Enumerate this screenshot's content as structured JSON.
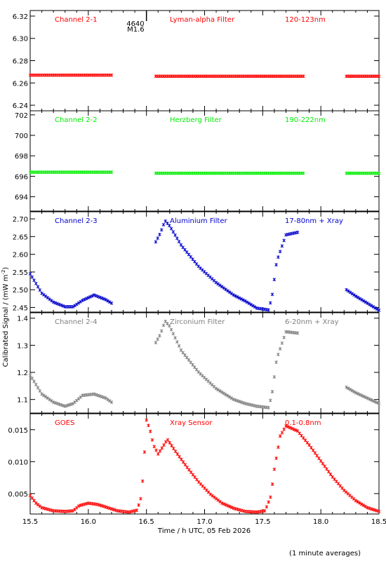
{
  "figure": {
    "xlabel": "Time / h UTC, 05 Feb 2026",
    "ylabel": "Calibrated Signal / (mW m",
    "ylabel_exp": "-2",
    "ylabel_close": ")",
    "footnote": "(1 minute averages)",
    "x_ticks": [
      "15.5",
      "16.0",
      "16.5",
      "17.0",
      "17.5",
      "18.0",
      "18.5"
    ],
    "flare_marker": {
      "line1": "4640",
      "line2": "M1.6",
      "x": 16.5
    }
  },
  "colors": {
    "red": "#ff0000",
    "green": "#00ee00",
    "blue": "#0000cc",
    "gray": "#808080"
  },
  "chart_data": [
    {
      "type": "scatter",
      "channel": "Channel 2-1",
      "filter": "Lyman-alpha Filter",
      "band": "120-123nm",
      "color": "#ff0000",
      "xlim": [
        15.5,
        18.5
      ],
      "ylim": [
        6.235,
        6.325
      ],
      "yticks": [
        6.24,
        6.26,
        6.28,
        6.3,
        6.32
      ],
      "ytick_labels": [
        "6.24",
        "6.26",
        "6.28",
        "6.30",
        "6.32"
      ],
      "series": [
        {
          "x": [
            15.5,
            16.2
          ],
          "y": [
            6.267,
            6.267
          ]
        },
        {
          "x": [
            16.58,
            17.85
          ],
          "y": [
            6.266,
            6.266
          ]
        },
        {
          "x": [
            18.22,
            18.5
          ],
          "y": [
            6.266,
            6.266
          ]
        }
      ]
    },
    {
      "type": "scatter",
      "channel": "Channel 2-2",
      "filter": "Herzberg Filter",
      "band": "190-222nm",
      "color": "#00ee00",
      "xlim": [
        15.5,
        18.5
      ],
      "ylim": [
        692.6,
        702.4
      ],
      "yticks": [
        694,
        696,
        698,
        700,
        702
      ],
      "ytick_labels": [
        "694",
        "696",
        "698",
        "700",
        "702"
      ],
      "series": [
        {
          "x": [
            15.5,
            16.2
          ],
          "y": [
            696.4,
            696.4
          ]
        },
        {
          "x": [
            16.58,
            17.85
          ],
          "y": [
            696.3,
            696.3
          ]
        },
        {
          "x": [
            18.22,
            18.5
          ],
          "y": [
            696.3,
            696.3
          ]
        }
      ]
    },
    {
      "type": "scatter",
      "channel": "Channel 2-3",
      "filter": "Aluminium Filter",
      "band": "17-80nm + Xray",
      "color": "#0000cc",
      "xlim": [
        15.5,
        18.5
      ],
      "ylim": [
        2.437,
        2.72
      ],
      "yticks": [
        2.45,
        2.5,
        2.55,
        2.6,
        2.65,
        2.7
      ],
      "ytick_labels": [
        "2.45",
        "2.50",
        "2.55",
        "2.60",
        "2.65",
        "2.70"
      ],
      "series": [
        {
          "x": [
            15.5,
            15.6,
            15.7,
            15.8,
            15.87,
            15.95,
            16.05,
            16.15,
            16.2
          ],
          "y": [
            2.545,
            2.49,
            2.465,
            2.452,
            2.452,
            2.47,
            2.485,
            2.472,
            2.462
          ]
        },
        {
          "x": [
            16.58,
            16.62,
            16.66,
            16.7,
            16.8,
            16.95,
            17.1,
            17.25,
            17.35,
            17.45,
            17.55,
            17.58,
            17.62,
            17.7,
            17.8
          ],
          "y": [
            2.635,
            2.66,
            2.695,
            2.68,
            2.625,
            2.565,
            2.52,
            2.485,
            2.468,
            2.448,
            2.443,
            2.48,
            2.58,
            2.655,
            2.662
          ]
        },
        {
          "x": [
            18.22,
            18.3,
            18.4,
            18.5
          ],
          "y": [
            2.5,
            2.482,
            2.462,
            2.442
          ]
        }
      ]
    },
    {
      "type": "scatter",
      "channel": "Channel 2-4",
      "filter": "Zirconium Filter",
      "band": "6-20nm + Xray",
      "color": "#808080",
      "xlim": [
        15.5,
        18.5
      ],
      "ylim": [
        1.05,
        1.42
      ],
      "yticks": [
        1.1,
        1.2,
        1.3,
        1.4
      ],
      "ytick_labels": [
        "1.1",
        "1.2",
        "1.3",
        "1.4"
      ],
      "series": [
        {
          "x": [
            15.5,
            15.6,
            15.7,
            15.8,
            15.87,
            15.95,
            16.05,
            16.15,
            16.2
          ],
          "y": [
            1.19,
            1.12,
            1.09,
            1.075,
            1.085,
            1.115,
            1.12,
            1.105,
            1.09
          ]
        },
        {
          "x": [
            16.58,
            16.62,
            16.66,
            16.7,
            16.8,
            16.95,
            17.1,
            17.25,
            17.35,
            17.45,
            17.55,
            17.58,
            17.62,
            17.7,
            17.8
          ],
          "y": [
            1.31,
            1.34,
            1.39,
            1.37,
            1.28,
            1.2,
            1.14,
            1.1,
            1.085,
            1.075,
            1.07,
            1.12,
            1.25,
            1.35,
            1.345
          ]
        },
        {
          "x": [
            18.22,
            18.3,
            18.4,
            18.5
          ],
          "y": [
            1.145,
            1.125,
            1.105,
            1.085
          ]
        }
      ]
    },
    {
      "type": "scatter",
      "channel": "GOES",
      "filter": "Xray Sensor",
      "band": "0.1-0.8nm",
      "color": "#ff0000",
      "xlim": [
        15.5,
        18.5
      ],
      "ylim": [
        0.0018,
        0.0175
      ],
      "yticks": [
        0.005,
        0.01,
        0.015
      ],
      "ytick_labels": [
        "0.005",
        "0.010",
        "0.015"
      ],
      "series": [
        {
          "x": [
            15.5,
            15.55,
            15.6,
            15.7,
            15.8,
            15.87,
            15.92,
            16.0,
            16.08,
            16.15,
            16.25,
            16.35,
            16.42,
            16.45,
            16.47,
            16.5,
            16.53,
            16.56,
            16.6,
            16.64,
            16.68,
            16.75,
            16.85,
            16.95,
            17.05,
            17.15,
            17.25,
            17.35,
            17.45,
            17.52,
            17.57,
            17.6,
            17.65,
            17.7,
            17.8,
            17.9,
            18.0,
            18.1,
            18.2,
            18.3,
            18.4,
            18.5
          ],
          "y": [
            0.0047,
            0.0035,
            0.0028,
            0.0023,
            0.0022,
            0.0023,
            0.0031,
            0.0035,
            0.0033,
            0.0029,
            0.0023,
            0.0021,
            0.0024,
            0.0042,
            0.0075,
            0.0165,
            0.015,
            0.0126,
            0.0112,
            0.0123,
            0.0135,
            0.0116,
            0.0091,
            0.0068,
            0.0049,
            0.0035,
            0.0027,
            0.0022,
            0.0021,
            0.0023,
            0.0046,
            0.0088,
            0.014,
            0.0156,
            0.0148,
            0.0126,
            0.0101,
            0.0076,
            0.0055,
            0.0039,
            0.0028,
            0.0022
          ]
        }
      ]
    }
  ]
}
